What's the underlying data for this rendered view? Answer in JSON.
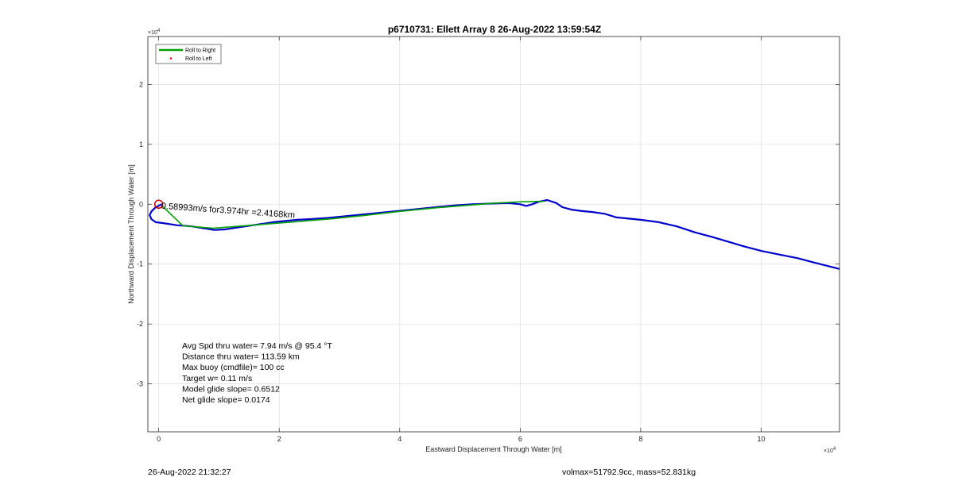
{
  "chart_data": {
    "type": "line",
    "title": "p6710731: Ellett Array 8 26-Aug-2022 13:59:54Z",
    "xlabel": "Eastward Displacement Through Water [m]",
    "ylabel": "Northward Displacement Through Water [m]",
    "x_exponent": "×10",
    "x_exponent_power": "4",
    "y_exponent": "×10",
    "y_exponent_power": "4",
    "xlim": [
      -0.18,
      11.3
    ],
    "ylim": [
      -3.8,
      2.8
    ],
    "x_ticks": [
      0,
      2,
      4,
      6,
      8,
      10
    ],
    "y_ticks": [
      -3,
      -2,
      -1,
      0,
      1,
      2
    ],
    "x_tick_labels": [
      "0",
      "2",
      "4",
      "6",
      "8",
      "10"
    ],
    "y_tick_labels": [
      "-3",
      "-2",
      "-1",
      "0",
      "1",
      "2"
    ],
    "grid": true,
    "legend_position": "top-left",
    "legend": [
      {
        "label": "Roll to Right",
        "color": "#00a000",
        "style": "line"
      },
      {
        "label": "Roll to Left",
        "color": "#ff0000",
        "style": "marker"
      }
    ],
    "series": [
      {
        "color": "#0000cc",
        "x": [
          0.05,
          -0.05,
          -0.12,
          -0.15,
          -0.12,
          -0.05,
          0.1,
          0.3,
          0.55,
          0.8,
          0.92,
          1.1,
          1.3,
          1.5,
          1.7,
          1.9,
          2.1,
          2.3,
          2.5,
          2.8,
          3.0,
          3.2,
          3.5,
          3.8,
          4.0,
          4.3,
          4.6,
          4.9,
          5.2,
          5.5,
          5.8,
          6.0,
          6.1,
          6.2,
          6.3,
          6.45,
          6.6,
          6.7,
          6.85,
          7.0,
          7.2,
          7.4,
          7.6,
          7.8,
          8.0,
          8.3,
          8.6,
          8.9,
          9.2,
          9.5,
          9.7,
          10.0,
          10.3,
          10.6,
          10.9,
          11.3
        ],
        "y": [
          0.0,
          -0.05,
          -0.12,
          -0.18,
          -0.25,
          -0.3,
          -0.32,
          -0.35,
          -0.37,
          -0.41,
          -0.43,
          -0.42,
          -0.39,
          -0.36,
          -0.33,
          -0.3,
          -0.28,
          -0.26,
          -0.25,
          -0.23,
          -0.21,
          -0.19,
          -0.16,
          -0.13,
          -0.11,
          -0.08,
          -0.05,
          -0.02,
          0.0,
          0.01,
          0.02,
          0.0,
          -0.03,
          0.0,
          0.04,
          0.07,
          0.02,
          -0.05,
          -0.09,
          -0.11,
          -0.13,
          -0.16,
          -0.22,
          -0.24,
          -0.26,
          -0.3,
          -0.37,
          -0.47,
          -0.55,
          -0.64,
          -0.7,
          -0.78,
          -0.84,
          -0.9,
          -0.98,
          -1.08
        ]
      },
      {
        "color": "#00a000",
        "x": [
          0.05,
          0.4,
          0.9,
          1.3,
          1.8,
          2.3,
          2.9,
          3.4,
          4.0,
          4.6,
          5.1,
          5.6,
          6.0,
          6.4
        ],
        "y": [
          -0.02,
          -0.36,
          -0.4,
          -0.37,
          -0.33,
          -0.29,
          -0.24,
          -0.19,
          -0.12,
          -0.06,
          -0.02,
          0.02,
          0.04,
          0.05
        ]
      }
    ],
    "start_marker": {
      "x": 0.0,
      "y": 0.0,
      "color": "#cc0000"
    },
    "annotation": {
      "x": 0.04,
      "y": -0.02,
      "text": "0.58993m/s for3.974hr =2.4168km"
    },
    "stats": [
      "Avg Spd thru water=  7.94 m/s @  95.4 °T",
      "Distance thru water= 113.59 km",
      "Max buoy (cmdfile)= 100 cc",
      "Target w= 0.11 m/s",
      "Model glide slope= 0.6512",
      "Net glide slope= 0.0174"
    ]
  },
  "footer": {
    "timestamp": "26-Aug-2022 21:32:27",
    "vol_mass": "volmax=51792.9cc, mass=52.831kg"
  }
}
